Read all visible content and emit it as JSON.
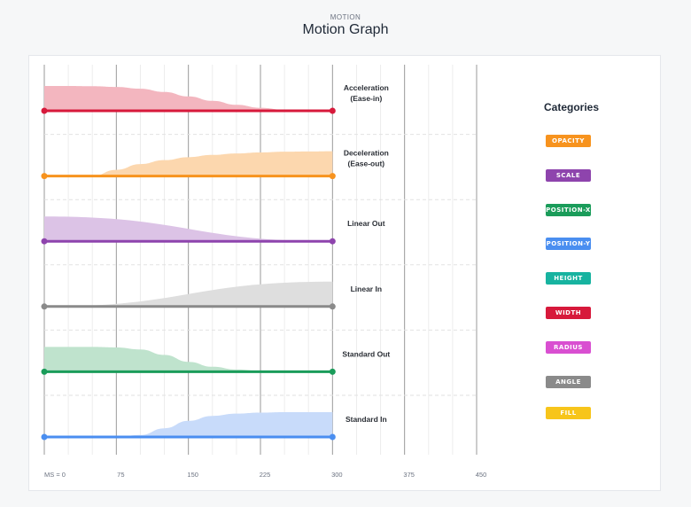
{
  "header": {
    "supertitle": "MOTION",
    "title": "Motion Graph"
  },
  "legend": {
    "title": "Categories",
    "items": [
      {
        "label": "OPACITY",
        "color": "#f7931e"
      },
      {
        "label": "SCALE",
        "color": "#8e44ad"
      },
      {
        "label": "POSITION-X",
        "color": "#1a9c5a"
      },
      {
        "label": "POSITION-Y",
        "color": "#4a8ef0"
      },
      {
        "label": "HEIGHT",
        "color": "#17b3a0"
      },
      {
        "label": "WIDTH",
        "color": "#d7193b"
      },
      {
        "label": "RADIUS",
        "color": "#d94fd1"
      },
      {
        "label": "ANGLE",
        "color": "#8a8a8a"
      },
      {
        "label": "FILL",
        "color": "#f7c51b"
      }
    ]
  },
  "chart_data": {
    "type": "area",
    "title": "Motion Graph",
    "xlabel": "",
    "ylabel": "",
    "x_unit_label": "MS",
    "x_ticks": [
      0,
      75,
      150,
      225,
      300,
      375,
      450
    ],
    "x_tick_labels": [
      "MS = 0",
      "75",
      "150",
      "225",
      "300",
      "375",
      "450"
    ],
    "xlim": [
      0,
      450
    ],
    "duration_ms": 300,
    "grid": true,
    "series": [
      {
        "name": "Acceleration\n(Ease-in)",
        "color": "#d7193b",
        "fill": "#f3b6bf",
        "x": [
          0,
          25,
          50,
          75,
          100,
          125,
          150,
          175,
          200,
          225,
          250,
          275,
          300
        ],
        "y": [
          1.0,
          1.0,
          0.99,
          0.96,
          0.89,
          0.76,
          0.58,
          0.4,
          0.24,
          0.12,
          0.04,
          0.01,
          0.0
        ]
      },
      {
        "name": "Deceleration\n(Ease-out)",
        "color": "#f7931e",
        "fill": "#fcd7ae",
        "x": [
          0,
          25,
          50,
          75,
          100,
          125,
          150,
          175,
          200,
          225,
          250,
          275,
          300
        ],
        "y": [
          0.0,
          0.0,
          0.0,
          0.25,
          0.48,
          0.64,
          0.76,
          0.85,
          0.91,
          0.95,
          0.98,
          0.99,
          1.0
        ]
      },
      {
        "name": "Linear Out",
        "color": "#8e44ad",
        "fill": "#dcc3e6",
        "x": [
          0,
          300
        ],
        "y": [
          1.0,
          0.0
        ]
      },
      {
        "name": "Linear In",
        "color": "#8a8a8a",
        "fill": "#dedede",
        "x": [
          0,
          300
        ],
        "y": [
          0.0,
          1.0
        ]
      },
      {
        "name": "Standard Out",
        "color": "#1a9c5a",
        "fill": "#bfe3cd",
        "x": [
          0,
          25,
          50,
          75,
          100,
          125,
          150,
          175,
          200,
          225,
          250,
          275,
          300
        ],
        "y": [
          1.0,
          1.0,
          1.0,
          0.98,
          0.9,
          0.68,
          0.4,
          0.2,
          0.09,
          0.04,
          0.01,
          0.0,
          0.0
        ]
      },
      {
        "name": "Standard In",
        "color": "#4a8ef0",
        "fill": "#c8dbfa",
        "x": [
          0,
          25,
          50,
          75,
          100,
          125,
          150,
          175,
          200,
          225,
          250,
          275,
          300
        ],
        "y": [
          0.0,
          0.0,
          0.0,
          0.0,
          0.08,
          0.35,
          0.65,
          0.85,
          0.94,
          0.98,
          1.0,
          1.0,
          1.0
        ]
      }
    ]
  }
}
